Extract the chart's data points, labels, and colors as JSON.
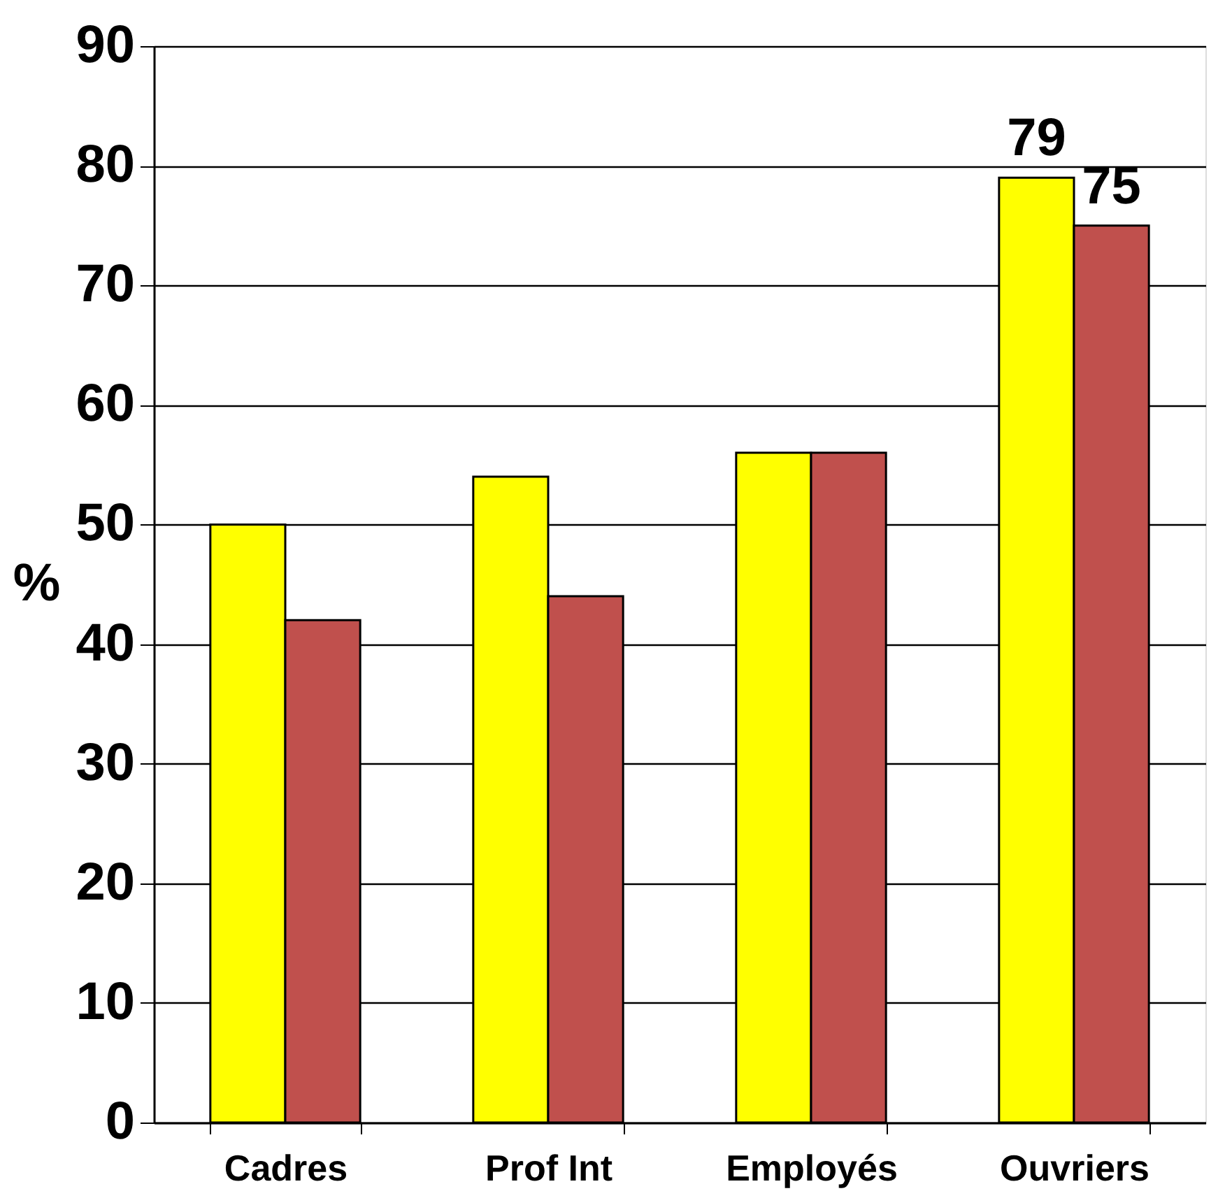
{
  "chart_data": {
    "type": "bar",
    "ylabel": "%",
    "categories": [
      "Cadres",
      "Prof Int",
      "Employés",
      "Ouvriers"
    ],
    "series": [
      {
        "color": "#ffff00",
        "values": [
          50,
          54,
          56,
          79
        ],
        "value_labels": [
          null,
          null,
          null,
          "79"
        ]
      },
      {
        "color": "#c0504d",
        "values": [
          42,
          44,
          56,
          75
        ],
        "value_labels": [
          null,
          null,
          null,
          "75"
        ]
      }
    ],
    "ylim": [
      0,
      90
    ],
    "yticks": [
      0,
      10,
      20,
      30,
      40,
      50,
      60,
      70,
      80,
      90
    ],
    "grid": "y"
  }
}
